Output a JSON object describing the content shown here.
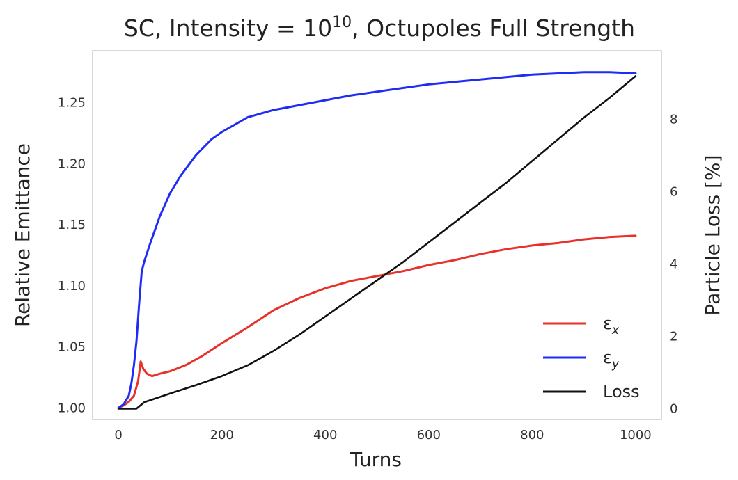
{
  "chart_data": {
    "type": "line",
    "title": "SC, Intensity = 10^10, Octupoles Full Strength",
    "title_parts": {
      "prefix": "SC, Intensity = ",
      "base": "10",
      "exponent": "10",
      "suffix": ", Octupoles Full Strength"
    },
    "xlabel": "Turns",
    "ylabel_left": "Relative Emittance",
    "ylabel_right": "Particle Loss [%]",
    "xlim": [
      -50,
      1050
    ],
    "ylim_left": [
      0.9905,
      1.2925
    ],
    "ylim_right": [
      -0.3,
      9.9
    ],
    "xticks": [
      0,
      200,
      400,
      600,
      800,
      1000
    ],
    "yticks_left": [
      "1.00",
      "1.05",
      "1.10",
      "1.15",
      "1.20",
      "1.25"
    ],
    "yticks_right": [
      "0",
      "2",
      "4",
      "6",
      "8"
    ],
    "grid": false,
    "legend_position": "lower-right",
    "legend": [
      {
        "label": "ε",
        "sub": "x",
        "color": "#e8312a"
      },
      {
        "label": "ε",
        "sub": "y",
        "color": "#1e2cf5"
      },
      {
        "label": "Loss",
        "sub": "",
        "color": "#111111"
      }
    ],
    "series": [
      {
        "name": "εx",
        "axis": "left",
        "color": "#e8312a",
        "points": [
          [
            0,
            1.0
          ],
          [
            10,
            1.002
          ],
          [
            20,
            1.005
          ],
          [
            30,
            1.01
          ],
          [
            38,
            1.022
          ],
          [
            43,
            1.038
          ],
          [
            48,
            1.032
          ],
          [
            55,
            1.028
          ],
          [
            65,
            1.026
          ],
          [
            80,
            1.028
          ],
          [
            100,
            1.03
          ],
          [
            130,
            1.035
          ],
          [
            160,
            1.042
          ],
          [
            200,
            1.053
          ],
          [
            250,
            1.066
          ],
          [
            300,
            1.08
          ],
          [
            350,
            1.09
          ],
          [
            400,
            1.098
          ],
          [
            450,
            1.104
          ],
          [
            500,
            1.108
          ],
          [
            550,
            1.112
          ],
          [
            600,
            1.117
          ],
          [
            650,
            1.121
          ],
          [
            700,
            1.126
          ],
          [
            750,
            1.13
          ],
          [
            800,
            1.133
          ],
          [
            850,
            1.135
          ],
          [
            900,
            1.138
          ],
          [
            950,
            1.14
          ],
          [
            1000,
            1.141
          ]
        ]
      },
      {
        "name": "εy",
        "axis": "left",
        "color": "#1e2cf5",
        "points": [
          [
            0,
            1.0
          ],
          [
            10,
            1.003
          ],
          [
            20,
            1.01
          ],
          [
            25,
            1.02
          ],
          [
            30,
            1.035
          ],
          [
            35,
            1.055
          ],
          [
            40,
            1.085
          ],
          [
            45,
            1.112
          ],
          [
            50,
            1.12
          ],
          [
            60,
            1.133
          ],
          [
            70,
            1.145
          ],
          [
            80,
            1.157
          ],
          [
            100,
            1.176
          ],
          [
            120,
            1.19
          ],
          [
            150,
            1.207
          ],
          [
            180,
            1.22
          ],
          [
            200,
            1.226
          ],
          [
            250,
            1.238
          ],
          [
            300,
            1.244
          ],
          [
            350,
            1.248
          ],
          [
            400,
            1.252
          ],
          [
            450,
            1.256
          ],
          [
            500,
            1.259
          ],
          [
            550,
            1.262
          ],
          [
            600,
            1.265
          ],
          [
            650,
            1.267
          ],
          [
            700,
            1.269
          ],
          [
            750,
            1.271
          ],
          [
            800,
            1.273
          ],
          [
            850,
            1.274
          ],
          [
            900,
            1.275
          ],
          [
            950,
            1.275
          ],
          [
            1000,
            1.274
          ]
        ]
      },
      {
        "name": "Loss",
        "axis": "right",
        "color": "#111111",
        "points": [
          [
            0,
            0
          ],
          [
            35,
            0
          ],
          [
            50,
            0.18
          ],
          [
            100,
            0.42
          ],
          [
            150,
            0.65
          ],
          [
            200,
            0.9
          ],
          [
            250,
            1.2
          ],
          [
            300,
            1.6
          ],
          [
            350,
            2.05
          ],
          [
            400,
            2.55
          ],
          [
            450,
            3.05
          ],
          [
            500,
            3.55
          ],
          [
            550,
            4.05
          ],
          [
            600,
            4.6
          ],
          [
            650,
            5.15
          ],
          [
            700,
            5.7
          ],
          [
            750,
            6.25
          ],
          [
            800,
            6.85
          ],
          [
            850,
            7.45
          ],
          [
            900,
            8.05
          ],
          [
            950,
            8.6
          ],
          [
            1000,
            9.2
          ]
        ]
      }
    ]
  }
}
